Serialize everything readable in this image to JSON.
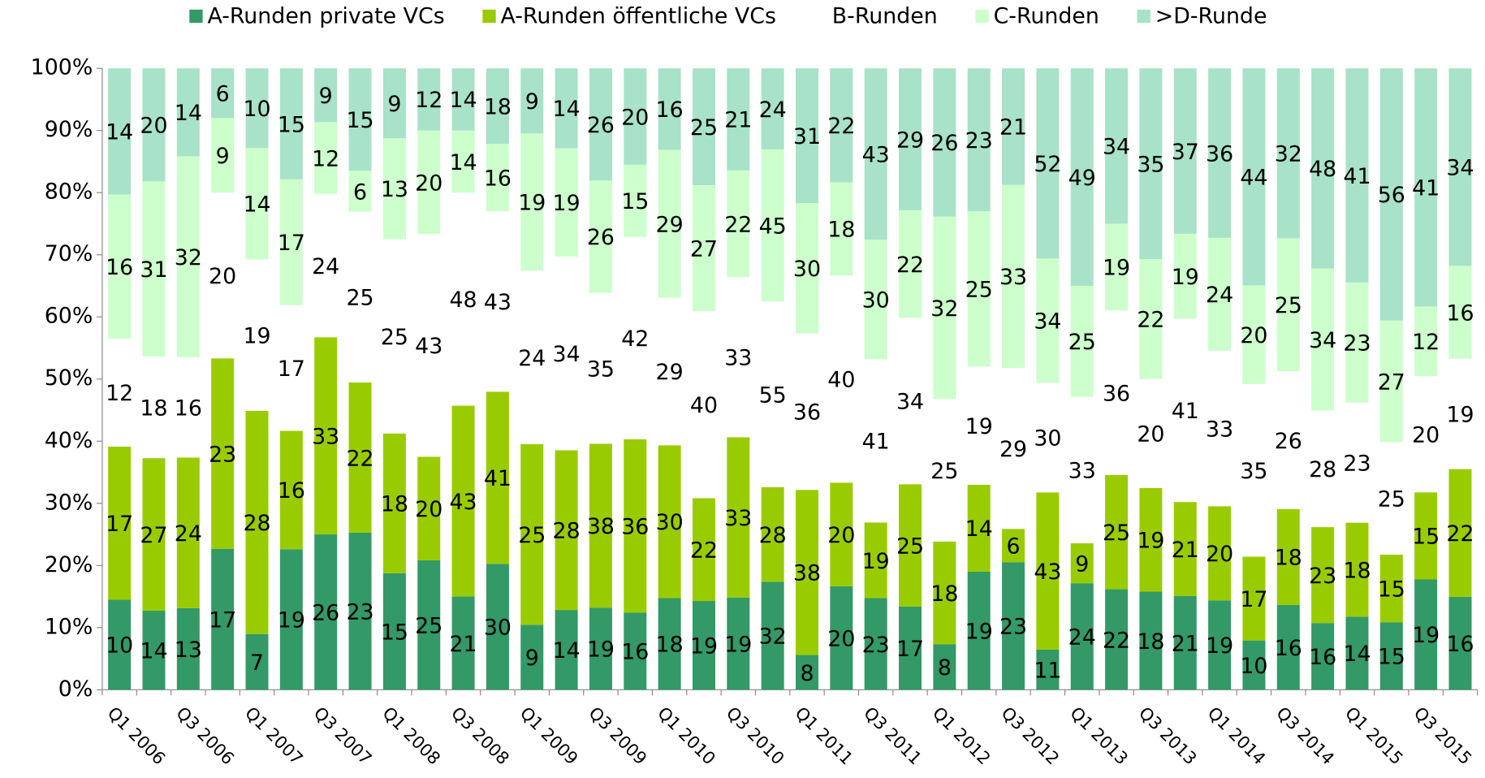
{
  "chart_data": {
    "type": "bar",
    "stacking": "percent",
    "categories": [
      "Q1 2006",
      null,
      "Q3 2006",
      null,
      "Q1 2007",
      null,
      "Q3 2007",
      null,
      "Q1 2008",
      null,
      "Q3 2008",
      null,
      "Q1 2009",
      null,
      "Q3 2009",
      null,
      "Q1 2010",
      null,
      "Q3 2010",
      null,
      "Q1 2011",
      null,
      "Q3 2011",
      null,
      "Q1 2012",
      null,
      "Q3 2012",
      null,
      "Q1 2013",
      null,
      "Q3 2013",
      null,
      "Q1 2014",
      null,
      "Q3 2014",
      null,
      "Q1 2015",
      null,
      "Q3 2015",
      null
    ],
    "series": [
      {
        "name": "A-Runden private VCs",
        "color": "#339966",
        "values": [
          10,
          14,
          13,
          17,
          7,
          19,
          26,
          23,
          15,
          25,
          21,
          30,
          9,
          14,
          19,
          16,
          18,
          19,
          19,
          32,
          8,
          20,
          23,
          17,
          8,
          19,
          23,
          11,
          24,
          22,
          18,
          21,
          19,
          10,
          16,
          16,
          14,
          15,
          19,
          16
        ]
      },
      {
        "name": "A-Runden öffentliche VCs",
        "color": "#99cc00",
        "values": [
          17,
          27,
          24,
          23,
          28,
          16,
          33,
          22,
          18,
          20,
          43,
          41,
          25,
          28,
          38,
          36,
          30,
          22,
          33,
          28,
          38,
          20,
          19,
          25,
          18,
          14,
          6,
          43,
          9,
          25,
          19,
          21,
          20,
          17,
          18,
          23,
          18,
          15,
          15,
          22
        ]
      },
      {
        "name": "B-Runden",
        "color": "#ffffff",
        "values": [
          12,
          18,
          16,
          20,
          19,
          17,
          24,
          25,
          25,
          43,
          48,
          43,
          24,
          34,
          35,
          42,
          29,
          40,
          33,
          55,
          36,
          40,
          41,
          34,
          25,
          19,
          29,
          30,
          33,
          36,
          20,
          41,
          33,
          35,
          26,
          28,
          23,
          25,
          20,
          19
        ]
      },
      {
        "name": "C-Runden",
        "color": "#ccffcc",
        "values": [
          16,
          31,
          32,
          9,
          14,
          17,
          12,
          6,
          13,
          20,
          14,
          16,
          19,
          19,
          26,
          15,
          29,
          27,
          22,
          45,
          30,
          18,
          30,
          22,
          32,
          25,
          33,
          34,
          25,
          19,
          22,
          19,
          24,
          20,
          25,
          34,
          23,
          27,
          12,
          16
        ]
      },
      {
        "name": ">D-Runde",
        "color": "#a8e2c8",
        "values": [
          14,
          20,
          14,
          6,
          10,
          15,
          9,
          15,
          9,
          12,
          14,
          18,
          9,
          14,
          26,
          20,
          16,
          25,
          21,
          24,
          31,
          22,
          43,
          29,
          26,
          23,
          21,
          52,
          49,
          34,
          35,
          37,
          36,
          44,
          32,
          48,
          41,
          56,
          41,
          34
        ]
      }
    ],
    "ylim": [
      0,
      100
    ],
    "yticks": [
      {
        "value": 0,
        "label": "0%"
      },
      {
        "value": 10,
        "label": "10%"
      },
      {
        "value": 20,
        "label": "20%"
      },
      {
        "value": 30,
        "label": "30%"
      },
      {
        "value": 40,
        "label": "40%"
      },
      {
        "value": 50,
        "label": "50%"
      },
      {
        "value": 60,
        "label": "60%"
      },
      {
        "value": 70,
        "label": "70%"
      },
      {
        "value": 80,
        "label": "80%"
      },
      {
        "value": 90,
        "label": "90%"
      },
      {
        "value": 100,
        "label": "100%"
      }
    ],
    "legend": "top"
  }
}
